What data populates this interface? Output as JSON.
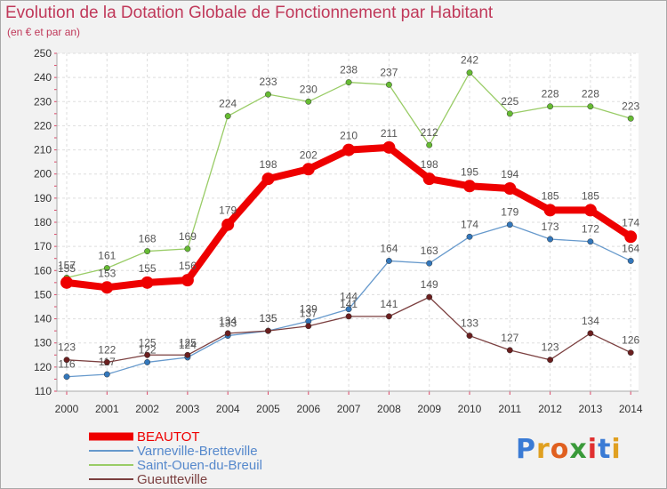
{
  "title": "Evolution de la Dotation Globale de Fonctionnement par Habitant",
  "subtitle": "(en € et par an)",
  "logo_text": "Proxiti",
  "chart_data": {
    "type": "line",
    "x": [
      "2000",
      "2001",
      "2002",
      "2003",
      "2004",
      "2005",
      "2006",
      "2007",
      "2008",
      "2009",
      "2010",
      "2011",
      "2012",
      "2013",
      "2014"
    ],
    "yticks": [
      110,
      120,
      130,
      140,
      150,
      160,
      170,
      180,
      190,
      200,
      210,
      220,
      230,
      240,
      250
    ],
    "ylim": [
      110,
      250
    ],
    "grid": true,
    "legend_placement": "bottom-left",
    "series": [
      {
        "name": "Saint-Ouen-du-Breuil",
        "color": "#99cc66",
        "marker": "#66bb33",
        "values": [
          157,
          161,
          168,
          169,
          224,
          233,
          230,
          238,
          237,
          212,
          242,
          225,
          228,
          228,
          223
        ]
      },
      {
        "name": "Varneville-Bretteville",
        "color": "#6699cc",
        "marker": "#3377bb",
        "values": [
          116,
          117,
          122,
          124,
          133,
          135,
          139,
          144,
          164,
          163,
          174,
          179,
          173,
          172,
          164
        ]
      },
      {
        "name": "Gueutteville",
        "color": "#7b3f3f",
        "marker": "#6b1f1f",
        "values": [
          123,
          122,
          125,
          125,
          134,
          135,
          137,
          141,
          141,
          149,
          133,
          127,
          123,
          134,
          126
        ]
      },
      {
        "name": "BEAUTOT",
        "color": "#ee0000",
        "marker": "#ee0000",
        "values": [
          155,
          153,
          155,
          156,
          179,
          198,
          202,
          210,
          211,
          198,
          195,
          194,
          185,
          185,
          174
        ]
      }
    ],
    "legend_order": [
      "BEAUTOT",
      "Varneville-Bretteville",
      "Saint-Ouen-du-Breuil",
      "Gueutteville"
    ]
  }
}
